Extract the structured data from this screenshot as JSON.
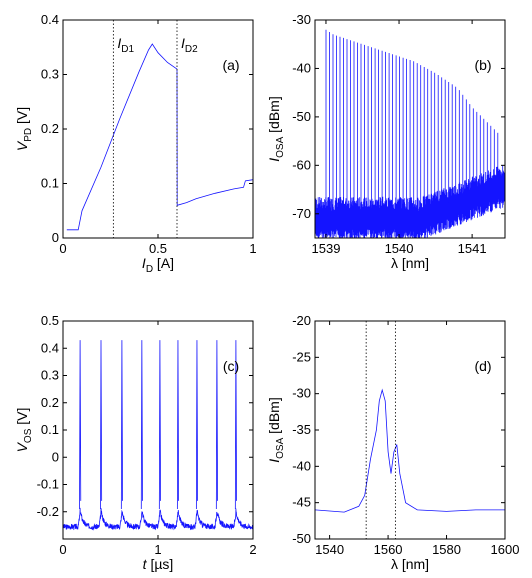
{
  "chart_data": [
    {
      "id": "a",
      "type": "line",
      "panel_label": "(a)",
      "xlabel": {
        "main": "I",
        "sub": "D",
        "unit": " [A]"
      },
      "ylabel": {
        "main": "V",
        "sub": "PD",
        "unit": " [V]"
      },
      "xlim": [
        0,
        1
      ],
      "ylim": [
        0,
        0.4
      ],
      "xticks": [
        {
          "v": 0,
          "t": "0"
        },
        {
          "v": 0.5,
          "t": "0.5"
        },
        {
          "v": 1,
          "t": "1"
        }
      ],
      "yticks": [
        {
          "v": 0,
          "t": "0"
        },
        {
          "v": 0.1,
          "t": "0.1"
        },
        {
          "v": 0.2,
          "t": "0.2"
        },
        {
          "v": 0.3,
          "t": "0.3"
        },
        {
          "v": 0.4,
          "t": "0.4"
        }
      ],
      "markers": [
        {
          "x": 0.265,
          "label": {
            "main": "I",
            "sub": "D1"
          }
        },
        {
          "x": 0.6,
          "label": {
            "main": "I",
            "sub": "D2"
          }
        }
      ],
      "series": [
        {
          "x": [
            0.02,
            0.08,
            0.1,
            0.2,
            0.3,
            0.4,
            0.45,
            0.47,
            0.5,
            0.55,
            0.6,
            0.601,
            0.65,
            0.7,
            0.8,
            0.9,
            0.95,
            0.96,
            1.0
          ],
          "y": [
            0.015,
            0.015,
            0.05,
            0.13,
            0.22,
            0.305,
            0.345,
            0.356,
            0.34,
            0.322,
            0.31,
            0.06,
            0.065,
            0.072,
            0.082,
            0.09,
            0.093,
            0.105,
            0.107
          ]
        }
      ]
    },
    {
      "id": "b",
      "type": "line",
      "panel_label": "(b)",
      "xlabel": {
        "main": "λ",
        "sub": "",
        "unit": " [nm]"
      },
      "ylabel": {
        "main": "I",
        "sub": "OSA",
        "unit": " [dBm]"
      },
      "xlim": [
        1538.85,
        1541.45
      ],
      "ylim": [
        -75,
        -30
      ],
      "xticks": [
        {
          "v": 1539,
          "t": "1539"
        },
        {
          "v": 1540,
          "t": "1540"
        },
        {
          "v": 1541,
          "t": "1541"
        }
      ],
      "yticks": [
        {
          "v": -70,
          "t": "-70"
        },
        {
          "v": -60,
          "t": "-60"
        },
        {
          "v": -50,
          "t": "-50"
        },
        {
          "v": -40,
          "t": "-40"
        },
        {
          "v": -30,
          "t": "-30"
        }
      ],
      "noise_floor": -70,
      "peaks": {
        "start": 1539.0,
        "spacing": 0.048,
        "count": 50,
        "x": [
          1539.0,
          1539.1,
          1539.3,
          1539.6,
          1539.9,
          1540.2,
          1540.5,
          1540.8,
          1541.0,
          1541.2,
          1541.4
        ],
        "envelope": [
          -32,
          -33,
          -34,
          -35.5,
          -37,
          -38.5,
          -41,
          -44,
          -48,
          -51,
          -54
        ]
      }
    },
    {
      "id": "c",
      "type": "line",
      "panel_label": "(c)",
      "xlabel": {
        "main": "t",
        "sub": "",
        "unit": " [µs]"
      },
      "ylabel": {
        "main": "V",
        "sub": "OS",
        "unit": " [V]"
      },
      "xlim": [
        0,
        2
      ],
      "ylim": [
        -0.3,
        0.5
      ],
      "xticks": [
        {
          "v": 0,
          "t": "0"
        },
        {
          "v": 1,
          "t": "1"
        },
        {
          "v": 2,
          "t": "2"
        }
      ],
      "yticks": [
        {
          "v": -0.2,
          "t": "-0.2"
        },
        {
          "v": -0.1,
          "t": "-0.1"
        },
        {
          "v": 0,
          "t": "0"
        },
        {
          "v": 0.1,
          "t": "0.1"
        },
        {
          "v": 0.2,
          "t": "0.2"
        },
        {
          "v": 0.3,
          "t": "0.3"
        },
        {
          "v": 0.4,
          "t": "0.4"
        },
        {
          "v": 0.5,
          "t": "0.5"
        }
      ],
      "pulses": {
        "times": [
          0.18,
          0.4,
          0.62,
          0.83,
          1.02,
          1.21,
          1.41,
          1.62,
          1.82
        ],
        "peak": 0.43,
        "floor": -0.22
      }
    },
    {
      "id": "d",
      "type": "line",
      "panel_label": "(d)",
      "xlabel": {
        "main": "λ",
        "sub": "",
        "unit": " [nm]"
      },
      "ylabel": {
        "main": "I",
        "sub": "OSA",
        "unit": " [dBm]"
      },
      "xlim": [
        1535,
        1600
      ],
      "ylim": [
        -50,
        -20
      ],
      "xticks": [
        {
          "v": 1540,
          "t": "1540"
        },
        {
          "v": 1560,
          "t": "1560"
        },
        {
          "v": 1580,
          "t": "1580"
        },
        {
          "v": 1600,
          "t": "1600"
        }
      ],
      "yticks": [
        {
          "v": -50,
          "t": "-50"
        },
        {
          "v": -45,
          "t": "-45"
        },
        {
          "v": -40,
          "t": "-40"
        },
        {
          "v": -35,
          "t": "-35"
        },
        {
          "v": -30,
          "t": "-30"
        },
        {
          "v": -25,
          "t": "-25"
        },
        {
          "v": -20,
          "t": "-20"
        }
      ],
      "markers": [
        {
          "x": 1552.5
        },
        {
          "x": 1562.5
        }
      ],
      "series": [
        {
          "x": [
            1535,
            1545,
            1550,
            1552,
            1554,
            1556,
            1557,
            1558,
            1559,
            1560,
            1561,
            1562,
            1563,
            1564,
            1566,
            1570,
            1580,
            1590,
            1600
          ],
          "y": [
            -46,
            -46.3,
            -45.5,
            -44,
            -39,
            -35,
            -31,
            -29.5,
            -31,
            -38,
            -41,
            -38,
            -37,
            -41,
            -45,
            -46,
            -46.2,
            -46,
            -46
          ]
        }
      ]
    }
  ]
}
